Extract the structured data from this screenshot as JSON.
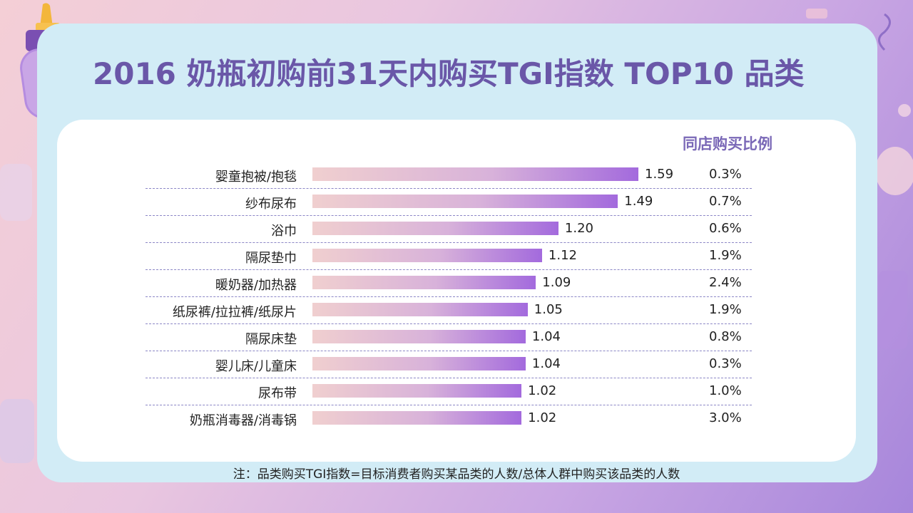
{
  "header": {
    "title": "2016 奶瓶初购前31天内购买TGI指数 TOP10 品类"
  },
  "chart_data": {
    "type": "bar",
    "orientation": "horizontal",
    "title": "2016 奶瓶初购前31天内购买TGI指数 TOP10 品类",
    "categories": [
      "婴童抱被/抱毯",
      "纱布尿布",
      "浴巾",
      "隔尿垫巾",
      "暖奶器/加热器",
      "纸尿裤/拉拉裤/纸尿片",
      "隔尿床垫",
      "婴儿床/儿童床",
      "尿布带",
      "奶瓶消毒器/消毒锅"
    ],
    "values": [
      1.59,
      1.49,
      1.2,
      1.12,
      1.09,
      1.05,
      1.04,
      1.04,
      1.02,
      1.02
    ],
    "value_labels": [
      "1.59",
      "1.49",
      "1.20",
      "1.12",
      "1.09",
      "1.05",
      "1.04",
      "1.04",
      "1.02",
      "1.02"
    ],
    "secondary_column": {
      "header": "同店购买比例",
      "values": [
        "0.3%",
        "0.7%",
        "0.6%",
        "1.9%",
        "2.4%",
        "1.9%",
        "0.8%",
        "0.3%",
        "1.0%",
        "3.0%"
      ]
    },
    "xlim": [
      0,
      1.59
    ],
    "grid": false,
    "colors": {
      "bar_start": "#f0cfcf",
      "bar_end": "#a36add",
      "title": "#6a57a8",
      "separator": "#8b86c6"
    }
  },
  "footnote": "注：品类购买TGI指数=目标消费者购买某品类的人数/总体人群中购买该品类的人数"
}
